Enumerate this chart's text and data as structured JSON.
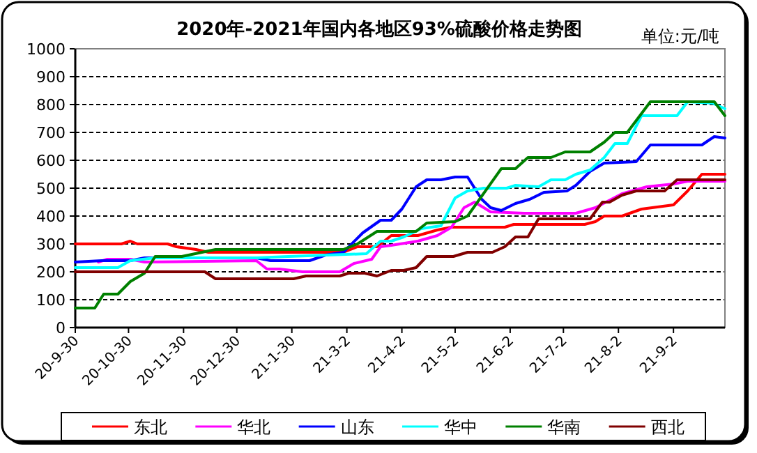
{
  "chart_data": {
    "type": "line",
    "title": "2020年-2021年国内各地区93%硫酸价格走势图",
    "subtitle": "单位:元/吨",
    "xlim": [
      "2020-09-30",
      "2021-10-01"
    ],
    "xticks": [
      {
        "value": "2020-09-30",
        "label": "20-9-30"
      },
      {
        "value": "2020-10-30",
        "label": "20-10-30"
      },
      {
        "value": "2020-11-30",
        "label": "20-11-30"
      },
      {
        "value": "2020-12-30",
        "label": "20-12-30"
      },
      {
        "value": "2021-01-30",
        "label": "21-1-30"
      },
      {
        "value": "2021-03-02",
        "label": "21-3-2"
      },
      {
        "value": "2021-04-02",
        "label": "21-4-2"
      },
      {
        "value": "2021-05-02",
        "label": "21-5-2"
      },
      {
        "value": "2021-06-02",
        "label": "21-6-2"
      },
      {
        "value": "2021-07-02",
        "label": "21-7-2"
      },
      {
        "value": "2021-08-02",
        "label": "21-8-2"
      },
      {
        "value": "2021-09-02",
        "label": "21-9-2"
      }
    ],
    "ylim": [
      0,
      1000
    ],
    "yticks": [
      0,
      100,
      200,
      300,
      400,
      500,
      600,
      700,
      800,
      900,
      1000
    ],
    "grid": "y",
    "legend": "bottom",
    "line_style": "solid",
    "marker": "none",
    "series": [
      {
        "name": "东北",
        "color": "#ff0000",
        "x": [
          "2020-09-30",
          "2020-10-26",
          "2020-10-31",
          "2020-11-04",
          "2020-11-21",
          "2020-11-26",
          "2020-12-07",
          "2020-12-14",
          "2021-02-28",
          "2021-03-08",
          "2021-03-19",
          "2021-03-27",
          "2021-04-11",
          "2021-04-22",
          "2021-04-30",
          "2021-05-30",
          "2021-06-04",
          "2021-07-14",
          "2021-07-20",
          "2021-07-25",
          "2021-08-04",
          "2021-08-15",
          "2021-09-02",
          "2021-09-10",
          "2021-09-18",
          "2021-10-01"
        ],
        "values": [
          300,
          300,
          310,
          300,
          300,
          290,
          280,
          270,
          270,
          290,
          290,
          330,
          330,
          350,
          360,
          360,
          370,
          370,
          380,
          400,
          400,
          425,
          440,
          490,
          550,
          550
        ]
      },
      {
        "name": "华北",
        "color": "#ff00ff",
        "x": [
          "2020-10-13",
          "2020-10-18",
          "2020-10-31",
          "2020-11-08",
          "2021-01-10",
          "2021-01-16",
          "2021-01-23",
          "2021-02-05",
          "2021-02-26",
          "2021-03-06",
          "2021-03-16",
          "2021-03-21",
          "2021-03-27",
          "2021-04-11",
          "2021-04-22",
          "2021-04-30",
          "2021-05-07",
          "2021-05-13",
          "2021-05-22",
          "2021-06-10",
          "2021-07-09",
          "2021-07-20",
          "2021-08-04",
          "2021-08-18",
          "2021-09-02",
          "2021-09-10",
          "2021-10-01"
        ],
        "values": [
          235,
          245,
          245,
          235,
          240,
          210,
          210,
          200,
          200,
          230,
          245,
          290,
          295,
          310,
          330,
          360,
          430,
          450,
          415,
          410,
          410,
          430,
          480,
          505,
          515,
          525,
          525
        ]
      },
      {
        "name": "山东",
        "color": "#0000ff",
        "x": [
          "2020-09-30",
          "2020-10-15",
          "2020-10-31",
          "2020-11-08",
          "2021-01-10",
          "2021-01-18",
          "2021-02-09",
          "2021-02-18",
          "2021-02-28",
          "2021-03-11",
          "2021-03-21",
          "2021-03-27",
          "2021-04-02",
          "2021-04-10",
          "2021-04-16",
          "2021-04-24",
          "2021-05-02",
          "2021-05-09",
          "2021-05-17",
          "2021-05-22",
          "2021-05-28",
          "2021-06-05",
          "2021-06-13",
          "2021-06-21",
          "2021-07-04",
          "2021-07-09",
          "2021-07-17",
          "2021-07-25",
          "2021-08-12",
          "2021-08-20",
          "2021-09-18",
          "2021-09-25",
          "2021-10-01"
        ],
        "values": [
          235,
          240,
          240,
          250,
          250,
          240,
          240,
          260,
          270,
          340,
          385,
          385,
          425,
          505,
          530,
          530,
          540,
          540,
          460,
          430,
          420,
          445,
          460,
          485,
          490,
          510,
          560,
          590,
          595,
          655,
          655,
          685,
          680
        ]
      },
      {
        "name": "华中",
        "color": "#00ffff",
        "x": [
          "2020-09-30",
          "2020-10-24",
          "2020-10-31",
          "2020-11-14",
          "2021-01-10",
          "2021-01-28",
          "2021-03-13",
          "2021-03-21",
          "2021-03-27",
          "2021-04-03",
          "2021-04-13",
          "2021-04-24",
          "2021-05-02",
          "2021-05-09",
          "2021-05-18",
          "2021-05-31",
          "2021-06-05",
          "2021-06-18",
          "2021-06-25",
          "2021-07-03",
          "2021-07-09",
          "2021-07-17",
          "2021-07-25",
          "2021-07-31",
          "2021-08-07",
          "2021-08-15",
          "2021-09-04",
          "2021-09-10",
          "2021-09-24",
          "2021-10-01"
        ],
        "values": [
          215,
          215,
          240,
          250,
          250,
          255,
          265,
          310,
          310,
          325,
          355,
          365,
          465,
          490,
          500,
          500,
          510,
          505,
          530,
          530,
          550,
          565,
          610,
          660,
          660,
          760,
          760,
          810,
          805,
          785
        ]
      },
      {
        "name": "华南",
        "color": "#008000",
        "x": [
          "2020-09-30",
          "2020-10-11",
          "2020-10-16",
          "2020-10-24",
          "2020-10-31",
          "2020-11-08",
          "2020-11-14",
          "2020-11-29",
          "2020-12-18",
          "2021-02-28",
          "2021-03-08",
          "2021-03-19",
          "2021-03-27",
          "2021-04-10",
          "2021-04-16",
          "2021-05-02",
          "2021-05-09",
          "2021-05-28",
          "2021-06-05",
          "2021-06-12",
          "2021-06-25",
          "2021-07-03",
          "2021-07-17",
          "2021-07-25",
          "2021-07-31",
          "2021-08-07",
          "2021-08-20",
          "2021-09-25",
          "2021-10-01"
        ],
        "values": [
          70,
          70,
          120,
          120,
          165,
          195,
          255,
          255,
          280,
          280,
          300,
          345,
          345,
          345,
          375,
          380,
          400,
          570,
          570,
          610,
          610,
          630,
          630,
          665,
          700,
          700,
          810,
          810,
          760
        ]
      },
      {
        "name": "西北",
        "color": "#800000",
        "x": [
          "2020-09-30",
          "2020-12-12",
          "2020-12-18",
          "2021-01-31",
          "2021-02-07",
          "2021-02-26",
          "2021-03-03",
          "2021-03-12",
          "2021-03-19",
          "2021-03-27",
          "2021-04-03",
          "2021-04-10",
          "2021-04-16",
          "2021-05-01",
          "2021-05-09",
          "2021-05-23",
          "2021-05-30",
          "2021-06-05",
          "2021-06-12",
          "2021-06-18",
          "2021-07-17",
          "2021-07-24",
          "2021-07-28",
          "2021-08-04",
          "2021-08-12",
          "2021-08-28",
          "2021-09-04",
          "2021-10-01"
        ],
        "values": [
          200,
          200,
          175,
          175,
          185,
          185,
          195,
          195,
          185,
          205,
          205,
          215,
          255,
          255,
          270,
          270,
          290,
          325,
          325,
          390,
          390,
          450,
          450,
          475,
          490,
          490,
          530,
          530
        ]
      }
    ]
  }
}
